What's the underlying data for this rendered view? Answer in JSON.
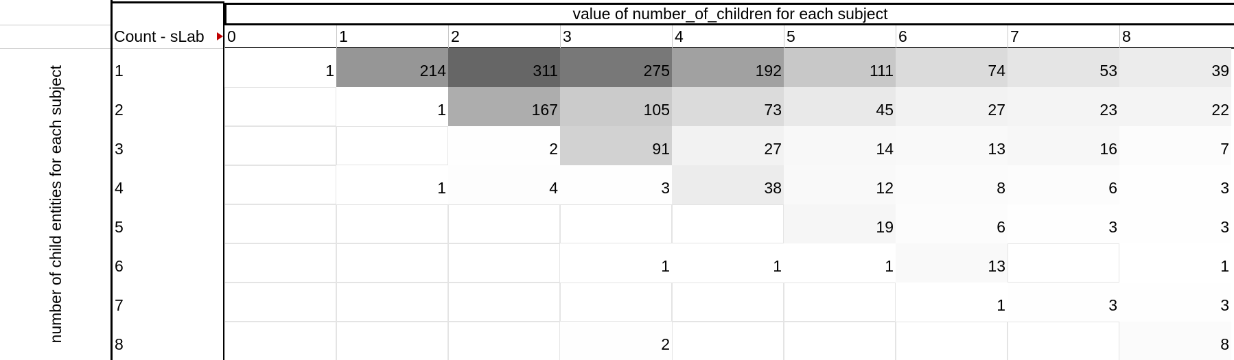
{
  "table": {
    "title": "value of number_of_children for each subject",
    "row_axis_label": "number of child entities for each subject",
    "corner_label": "Count - sLab",
    "columns": [
      "0",
      "1",
      "2",
      "3",
      "4",
      "5",
      "6",
      "7",
      "8"
    ],
    "rows": [
      {
        "label": "1",
        "cells": [
          1,
          214,
          311,
          275,
          192,
          111,
          74,
          53,
          39
        ]
      },
      {
        "label": "2",
        "cells": [
          null,
          1,
          167,
          105,
          73,
          45,
          27,
          23,
          22
        ]
      },
      {
        "label": "3",
        "cells": [
          null,
          null,
          2,
          91,
          27,
          14,
          13,
          16,
          7
        ]
      },
      {
        "label": "4",
        "cells": [
          null,
          1,
          4,
          3,
          38,
          12,
          8,
          6,
          3
        ]
      },
      {
        "label": "5",
        "cells": [
          null,
          null,
          null,
          null,
          null,
          19,
          6,
          3,
          3
        ]
      },
      {
        "label": "6",
        "cells": [
          null,
          null,
          null,
          1,
          1,
          1,
          13,
          null,
          1
        ]
      },
      {
        "label": "7",
        "cells": [
          null,
          null,
          null,
          null,
          null,
          null,
          1,
          3,
          3
        ]
      },
      {
        "label": "8",
        "cells": [
          null,
          null,
          null,
          2,
          null,
          null,
          null,
          null,
          8
        ]
      }
    ]
  }
}
